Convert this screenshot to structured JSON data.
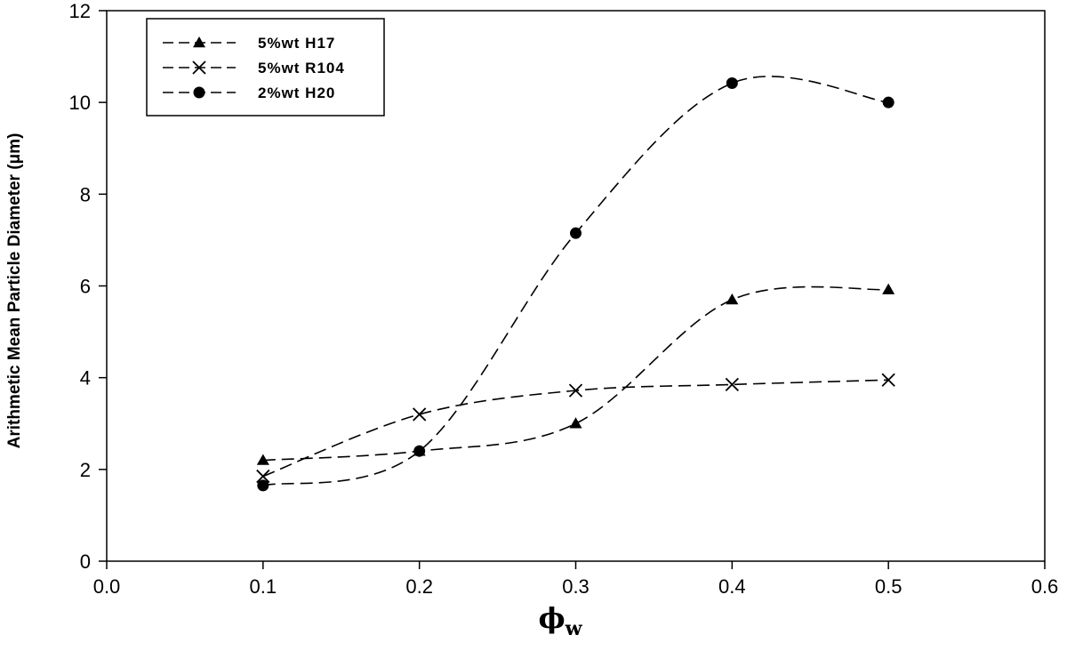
{
  "chart_data": {
    "type": "line",
    "title": "",
    "xlabel": "ϕ",
    "xlabel_subscript": "w",
    "ylabel": "Arithmetic Mean Particle Diameter (μm)",
    "xlim": [
      0.0,
      0.6
    ],
    "ylim": [
      0,
      12
    ],
    "x_ticks": [
      "0.0",
      "0.1",
      "0.2",
      "0.3",
      "0.4",
      "0.5",
      "0.6"
    ],
    "y_ticks": [
      "0",
      "2",
      "4",
      "6",
      "8",
      "10",
      "12"
    ],
    "grid": false,
    "legend_position": "top-left",
    "line_style": "dashed smooth",
    "x": [
      0.1,
      0.2,
      0.3,
      0.4,
      0.5
    ],
    "series": [
      {
        "name": "5%wt H17",
        "marker": "triangle",
        "values": [
          2.2,
          2.4,
          3.0,
          5.7,
          5.92
        ]
      },
      {
        "name": "5%wt R104",
        "marker": "x",
        "values": [
          1.85,
          3.2,
          3.72,
          3.85,
          3.95
        ]
      },
      {
        "name": "2%wt H20",
        "marker": "circle",
        "values": [
          1.65,
          2.4,
          7.15,
          10.42,
          10.0
        ]
      }
    ]
  }
}
